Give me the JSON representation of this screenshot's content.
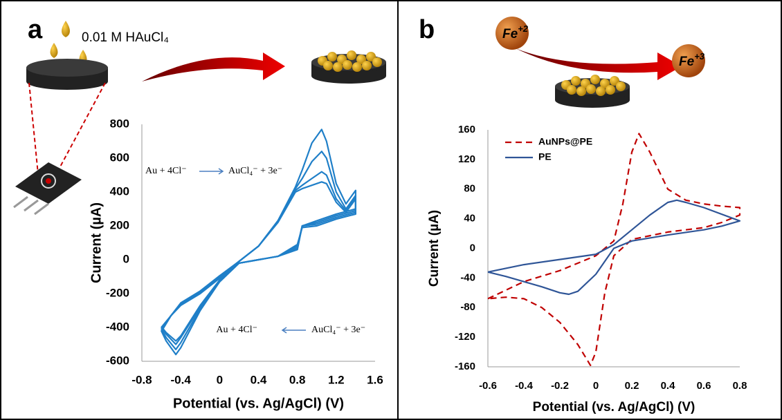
{
  "chart_data": [
    {
      "type": "line",
      "panel_label": "a",
      "reagent": "0.01 M HAuCl₄",
      "annotations": [
        "Au + 4Cl⁻",
        "AuCl₄⁻ + 3e⁻",
        "Au + 4Cl⁻",
        "AuCl₄⁻ + 3e⁻"
      ],
      "x_label": "Potential (vs. Ag/AgCl) (V)",
      "y_label": "Current (µA)",
      "x": [
        -0.6,
        -0.5,
        -0.4,
        -0.2,
        0,
        0.2,
        0.4,
        0.6,
        0.78,
        0.85,
        0.95,
        1.05,
        1.1,
        1.2,
        1.3,
        1.4,
        1.4,
        1.2,
        1.0,
        0.85,
        0.8,
        0.6,
        0.4,
        0.2,
        0,
        -0.2,
        -0.4,
        -0.45,
        -0.55,
        -0.6
      ],
      "series": [
        {
          "color": "#1f7fc8",
          "values": [
            -400,
            -330,
            -270,
            -200,
            -110,
            -10,
            80,
            230,
            430,
            530,
            690,
            770,
            700,
            450,
            330,
            410,
            300,
            270,
            230,
            200,
            60,
            20,
            0,
            -20,
            -130,
            -300,
            -520,
            -560,
            -480,
            -420
          ]
        },
        {
          "color": "#1f7fc8",
          "values": [
            -410,
            -330,
            -265,
            -195,
            -105,
            -10,
            80,
            230,
            420,
            480,
            580,
            640,
            600,
            400,
            300,
            380,
            290,
            260,
            220,
            200,
            70,
            20,
            0,
            -20,
            -130,
            -290,
            -490,
            -530,
            -460,
            -410
          ]
        },
        {
          "color": "#1f7fc8",
          "values": [
            -420,
            -330,
            -260,
            -190,
            -100,
            -10,
            80,
            225,
            410,
            440,
            480,
            520,
            500,
            360,
            290,
            370,
            280,
            250,
            210,
            200,
            80,
            20,
            0,
            -20,
            -125,
            -280,
            -460,
            -500,
            -440,
            -400
          ]
        },
        {
          "color": "#1f7fc8",
          "values": [
            -425,
            -330,
            -255,
            -185,
            -95,
            -10,
            80,
            220,
            400,
            420,
            440,
            460,
            450,
            340,
            280,
            360,
            270,
            240,
            200,
            190,
            90,
            20,
            0,
            -20,
            -120,
            -270,
            -450,
            -480,
            -430,
            -395
          ]
        }
      ],
      "xlim": [
        -0.8,
        1.6
      ],
      "xticks": [
        -0.8,
        -0.4,
        0,
        0.4,
        0.8,
        1.2,
        1.6
      ],
      "ylim": [
        -600,
        800
      ],
      "yticks": [
        -600,
        -400,
        -200,
        0,
        200,
        400,
        600,
        800
      ],
      "grid": false
    },
    {
      "type": "line",
      "panel_label": "b",
      "ions": [
        {
          "symbol": "Fe",
          "charge": "+2"
        },
        {
          "symbol": "Fe",
          "charge": "+3"
        }
      ],
      "x_label": "Potential (vs. Ag/AgCl) (V)",
      "y_label": "Current (µA)",
      "series": [
        {
          "name": "AuNPs@PE",
          "color": "#c00000",
          "linestyle": "dashed",
          "x": [
            -0.6,
            -0.4,
            -0.2,
            0,
            0.1,
            0.15,
            0.2,
            0.24,
            0.3,
            0.4,
            0.5,
            0.6,
            0.7,
            0.8,
            0.8,
            0.7,
            0.6,
            0.4,
            0.2,
            0.1,
            0.05,
            0,
            -0.03,
            -0.1,
            -0.2,
            -0.3,
            -0.4,
            -0.5,
            -0.6
          ],
          "values": [
            -68,
            -45,
            -30,
            -10,
            10,
            60,
            130,
            155,
            130,
            80,
            65,
            60,
            57,
            55,
            45,
            35,
            28,
            22,
            12,
            -10,
            -60,
            -140,
            -158,
            -130,
            -100,
            -80,
            -68,
            -66,
            -68
          ]
        },
        {
          "name": "PE",
          "color": "#2f5597",
          "linestyle": "solid",
          "x": [
            -0.6,
            -0.4,
            -0.2,
            0,
            0.1,
            0.2,
            0.3,
            0.4,
            0.45,
            0.5,
            0.6,
            0.8,
            0.7,
            0.6,
            0.4,
            0.2,
            0.1,
            0,
            -0.1,
            -0.15,
            -0.2,
            -0.3,
            -0.4,
            -0.5,
            -0.6
          ],
          "values": [
            -32,
            -22,
            -15,
            -8,
            5,
            25,
            45,
            62,
            65,
            62,
            55,
            37,
            30,
            25,
            18,
            10,
            0,
            -35,
            -58,
            -62,
            -60,
            -52,
            -45,
            -38,
            -32
          ]
        }
      ],
      "xlim": [
        -0.6,
        0.8
      ],
      "xticks": [
        -0.6,
        -0.4,
        -0.2,
        0,
        0.2,
        0.4,
        0.6,
        0.8
      ],
      "ylim": [
        -160,
        160
      ],
      "yticks": [
        -160,
        -120,
        -80,
        -40,
        0,
        40,
        80,
        120,
        160
      ],
      "grid": false,
      "legend": "upper left"
    }
  ]
}
